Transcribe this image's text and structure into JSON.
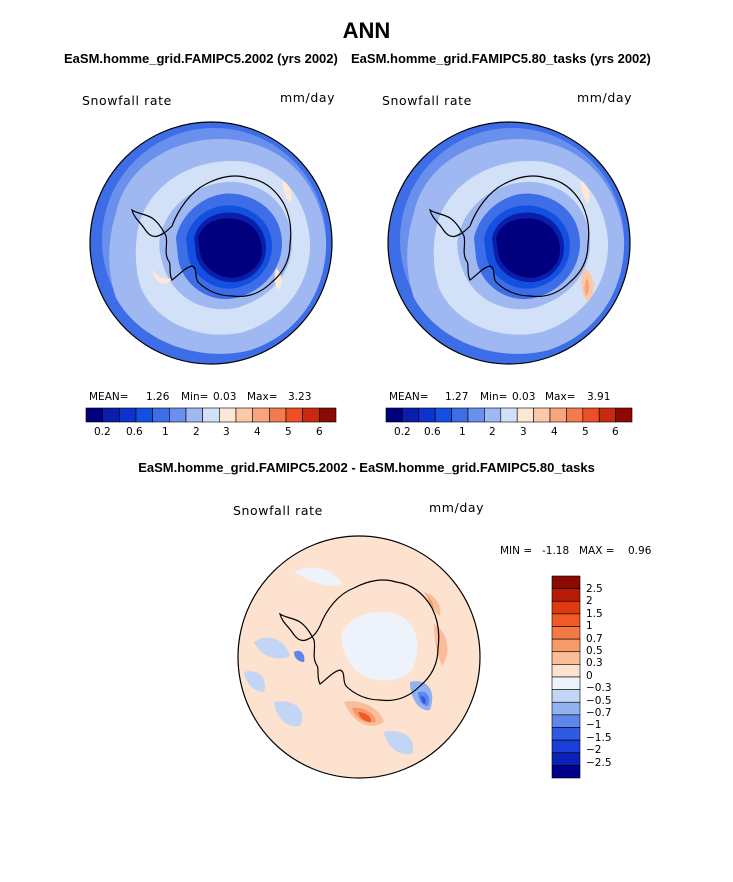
{
  "header": {
    "title": "ANN",
    "subtitle_left": "EaSM.homme_grid.FAMIPC5.2002 (yrs 2002)",
    "subtitle_right": "EaSM.homme_grid.FAMIPC5.80_tasks (yrs 2002)",
    "diff_title": "EaSM.homme_grid.FAMIPC5.2002 - EaSM.homme_grid.FAMIPC5.80_tasks"
  },
  "panels": [
    {
      "variable": "Snowfall rate",
      "units": "mm/day",
      "mean_label": "MEAN=",
      "mean": "1.26",
      "min_label": "Min=",
      "min": "0.03",
      "max_label": "Max=",
      "max": "3.23"
    },
    {
      "variable": "Snowfall rate",
      "units": "mm/day",
      "mean_label": "MEAN=",
      "mean": "1.27",
      "min_label": "Min=",
      "min": "0.03",
      "max_label": "Max=",
      "max": "3.91"
    }
  ],
  "abs_colorbar": {
    "colors": [
      "#00007f",
      "#0a1dab",
      "#0d33cc",
      "#1450e0",
      "#3d6ee8",
      "#6a90ee",
      "#9fb8f2",
      "#d2e1f7",
      "#fde7d6",
      "#fbc8a8",
      "#f8a47c",
      "#f37a4f",
      "#ea4f25",
      "#c82a0f",
      "#8c0a04"
    ],
    "tick_labels": [
      "0.2",
      "0.6",
      "1",
      "2",
      "3",
      "4",
      "5",
      "6"
    ]
  },
  "diff_panel": {
    "variable": "Snowfall rate",
    "units": "mm/day",
    "min_label": "MIN =",
    "min": "-1.18",
    "max_label": "MAX =",
    "max": "0.96"
  },
  "diff_colorbar": {
    "colors_top_to_bottom": [
      "#8c0a04",
      "#b81a06",
      "#e03a12",
      "#f05a26",
      "#f47a45",
      "#f79a6a",
      "#fabd98",
      "#fde3cf",
      "#eef3fb",
      "#c2d5f4",
      "#92b2ef",
      "#5f86ea",
      "#2f5be4",
      "#1a3fd8",
      "#0b22b8",
      "#00008a"
    ],
    "labels": [
      "2.5",
      "2",
      "1.5",
      "1",
      "0.7",
      "0.5",
      "0.3",
      "0",
      "−0.3",
      "−0.5",
      "−0.7",
      "−1",
      "−1.5",
      "−2",
      "−2.5"
    ]
  }
}
